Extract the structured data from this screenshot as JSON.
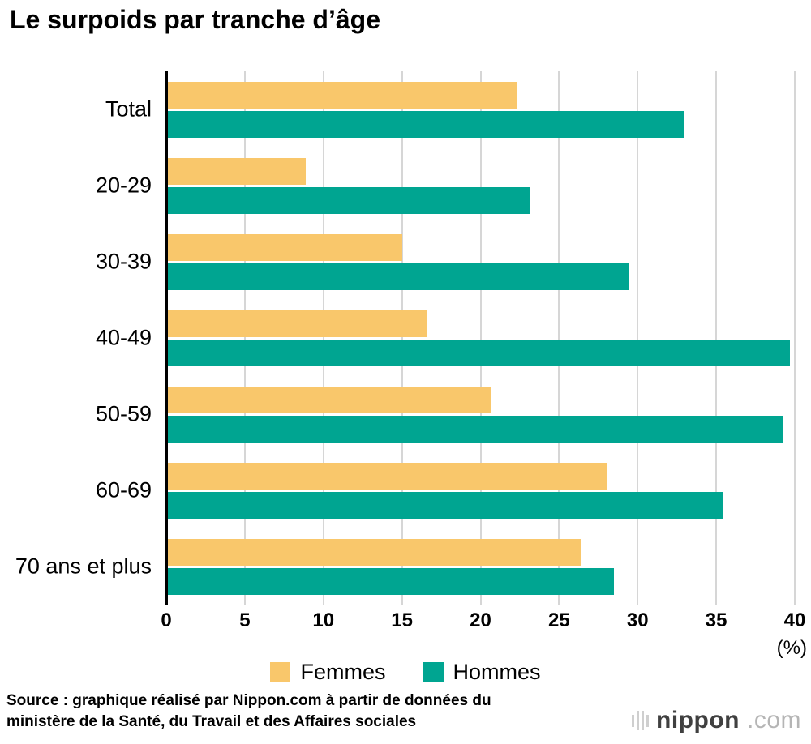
{
  "chart_data": {
    "type": "bar",
    "orientation": "horizontal",
    "title": "Le surpoids par tranche d’âge",
    "categories": [
      "Total",
      "20-29",
      "30-39",
      "40-49",
      "50-59",
      "60-69",
      "70 ans et plus"
    ],
    "series": [
      {
        "name": "Femmes",
        "color": "#F9C76B",
        "values": [
          22.3,
          8.9,
          15.0,
          16.6,
          20.7,
          28.1,
          26.4
        ]
      },
      {
        "name": "Hommes",
        "color": "#00A591",
        "values": [
          33.0,
          23.1,
          29.4,
          39.7,
          39.2,
          35.4,
          28.5
        ]
      }
    ],
    "x_ticks": [
      0,
      5,
      10,
      15,
      20,
      25,
      30,
      35,
      40
    ],
    "xlim": [
      0,
      40
    ],
    "x_unit_label": "(%)",
    "grid": true,
    "legend_position": "bottom",
    "axis_color": "#000000",
    "gridline_color": "#d6d6d6"
  },
  "footer": {
    "source_line1": "Source : graphique réalisé par Nippon.com à partir de données du",
    "source_line2": "ministère de la Santé, du Travail et des Affaires sociales",
    "logo_name": "nippon",
    "logo_suffix": ".com"
  }
}
